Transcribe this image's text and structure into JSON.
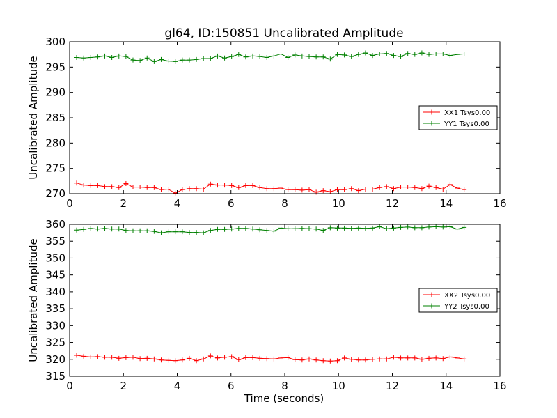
{
  "chart_data": [
    {
      "type": "line",
      "title": "gl64, ID:150851 Uncalibrated Amplitude",
      "xlabel": "",
      "ylabel": "Uncalibrated Amplitude",
      "xlim": [
        0,
        16
      ],
      "ylim": [
        270,
        300
      ],
      "xticks": [
        0,
        2,
        4,
        6,
        8,
        10,
        12,
        14,
        16
      ],
      "yticks": [
        270,
        275,
        280,
        285,
        290,
        295,
        300
      ],
      "x_start": 0.26,
      "x_step": 0.262,
      "legend_position": "center-right",
      "series": [
        {
          "name": "XX1 Tsys0.00",
          "color": "#ff0000",
          "values": [
            272.1,
            271.7,
            271.6,
            271.6,
            271.4,
            271.4,
            271.2,
            272.0,
            271.3,
            271.3,
            271.2,
            271.2,
            270.8,
            270.9,
            270.1,
            270.8,
            271.0,
            271.0,
            270.9,
            271.9,
            271.7,
            271.7,
            271.6,
            271.2,
            271.6,
            271.6,
            271.2,
            271.0,
            271.0,
            271.1,
            270.8,
            270.8,
            270.7,
            270.8,
            270.3,
            270.6,
            270.4,
            270.8,
            270.8,
            271.0,
            270.6,
            270.9,
            270.9,
            271.2,
            271.4,
            271.0,
            271.3,
            271.3,
            271.2,
            271.0,
            271.5,
            271.2,
            270.9,
            271.8,
            271.1,
            270.8
          ]
        },
        {
          "name": "YY1 Tsys0.00",
          "color": "#008000",
          "values": [
            296.9,
            296.8,
            296.9,
            297.0,
            297.2,
            296.9,
            297.2,
            297.1,
            296.4,
            296.3,
            296.8,
            296.1,
            296.5,
            296.2,
            296.1,
            296.4,
            296.4,
            296.5,
            296.7,
            296.7,
            297.2,
            296.8,
            297.1,
            297.5,
            297.0,
            297.2,
            297.1,
            296.9,
            297.2,
            297.6,
            296.9,
            297.4,
            297.2,
            297.1,
            297.0,
            297.0,
            296.6,
            297.5,
            297.4,
            297.1,
            297.5,
            297.8,
            297.3,
            297.6,
            297.7,
            297.3,
            297.1,
            297.7,
            297.5,
            297.8,
            297.5,
            297.6,
            297.6,
            297.3,
            297.5,
            297.6
          ]
        }
      ]
    },
    {
      "type": "line",
      "title": "",
      "xlabel": "Time (seconds)",
      "ylabel": "Uncalibrated Amplitude",
      "xlim": [
        0,
        16
      ],
      "ylim": [
        315,
        360
      ],
      "xticks": [
        0,
        2,
        4,
        6,
        8,
        10,
        12,
        14,
        16
      ],
      "yticks": [
        315,
        320,
        325,
        330,
        335,
        340,
        345,
        350,
        355,
        360
      ],
      "x_start": 0.26,
      "x_step": 0.262,
      "legend_position": "center-right",
      "series": [
        {
          "name": "XX2 Tsys0.00",
          "color": "#ff0000",
          "values": [
            321.2,
            320.9,
            320.7,
            320.8,
            320.6,
            320.6,
            320.3,
            320.5,
            320.6,
            320.2,
            320.3,
            320.1,
            319.8,
            319.7,
            319.6,
            319.8,
            320.3,
            319.6,
            320.1,
            321.0,
            320.4,
            320.6,
            320.8,
            319.9,
            320.5,
            320.5,
            320.3,
            320.2,
            320.1,
            320.4,
            320.5,
            319.9,
            319.8,
            320.1,
            319.8,
            319.6,
            319.5,
            319.6,
            320.4,
            320.0,
            319.8,
            319.8,
            320.0,
            320.1,
            320.1,
            320.6,
            320.4,
            320.4,
            320.4,
            320.0,
            320.3,
            320.4,
            320.2,
            320.7,
            320.4,
            320.1
          ]
        },
        {
          "name": "YY2 Tsys0.00",
          "color": "#008000",
          "values": [
            358.3,
            358.5,
            358.8,
            358.6,
            358.8,
            358.6,
            358.6,
            358.2,
            358.1,
            358.1,
            358.1,
            357.9,
            357.5,
            357.8,
            357.8,
            357.8,
            357.6,
            357.6,
            357.5,
            358.2,
            358.5,
            358.5,
            358.6,
            358.8,
            358.8,
            358.6,
            358.4,
            358.2,
            358.0,
            358.9,
            358.7,
            358.7,
            358.8,
            358.7,
            358.6,
            358.2,
            359.0,
            358.9,
            358.9,
            358.8,
            358.9,
            358.8,
            358.9,
            359.3,
            358.7,
            358.9,
            359.1,
            359.2,
            359.0,
            359.0,
            359.2,
            359.3,
            359.2,
            359.3,
            358.6,
            359.1
          ]
        }
      ]
    }
  ]
}
